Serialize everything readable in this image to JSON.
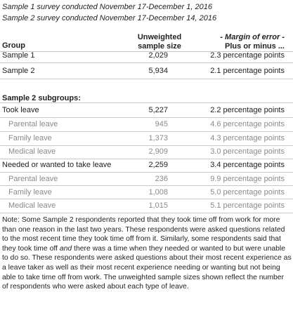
{
  "header": {
    "sample1_line": "Sample 1 survey conducted November 17-December 1, 2016",
    "sample2_line": "Sample 2 survey conducted November 17-December 14, 2016"
  },
  "columns": {
    "group": "Group",
    "size_line1": "Unweighted",
    "size_line2": "sample size",
    "moe_line1": "- Margin of error -",
    "moe_line2": "Plus or minus ..."
  },
  "samples": [
    {
      "label": "Sample 1",
      "size": "2,029",
      "moe": "2.3 percentage points"
    },
    {
      "label": "Sample 2",
      "size": "5,934",
      "moe": "2.1 percentage points"
    }
  ],
  "subgroups_heading": "Sample 2 subgroups:",
  "subgroups": [
    {
      "label": "Took leave",
      "size": "5,227",
      "moe": "2.2 percentage points",
      "sub": false
    },
    {
      "label": "Parental leave",
      "size": "945",
      "moe": "4.6 percentage points",
      "sub": true
    },
    {
      "label": "Family leave",
      "size": "1,373",
      "moe": "4.3 percentage points",
      "sub": true
    },
    {
      "label": "Medical leave",
      "size": "2,909",
      "moe": "3.0 percentage points",
      "sub": true
    },
    {
      "label": "Needed or wanted to take leave",
      "size": "2,259",
      "moe": "3.4 percentage points",
      "sub": false
    },
    {
      "label": "Parental leave",
      "size": "236",
      "moe": "9.9 percentage points",
      "sub": true
    },
    {
      "label": "Family leave",
      "size": "1,008",
      "moe": "5.0 percentage points",
      "sub": true
    },
    {
      "label": "Medical leave",
      "size": "1,015",
      "moe": "5.1 percentage points",
      "sub": true
    }
  ],
  "note": {
    "part1": "Note: Some Sample 2 respondents reported that they took time off from work for more than one reason in the last two years. These respondents were asked questions related to the most recent time they took time off from it. Similarly, some respondents said that they took time off ",
    "emphasis": "and",
    "part2": " there was a time when they needed or wanted to but were unable to do so. These respondents were asked questions about their most recent experience as a leave taker as well as their most recent experience needing or wanting but not being able to take time off from work.  The unweighted sample sizes shown reflect the number of respondents who were asked about each type of leave."
  }
}
